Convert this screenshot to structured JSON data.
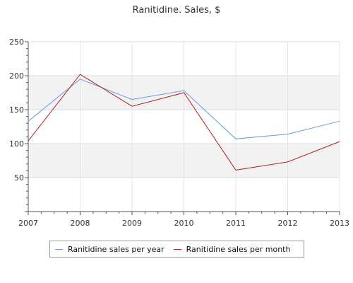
{
  "chart_data": {
    "type": "line",
    "title": "Ranitidine. Sales, $",
    "xlabel": "",
    "ylabel": "",
    "x": [
      "2007",
      "2008",
      "2009",
      "2010",
      "2011",
      "2012",
      "2013"
    ],
    "ylim": [
      0,
      250
    ],
    "yticks": [
      50,
      100,
      150,
      200,
      250
    ],
    "grid": true,
    "legend_position": "bottom",
    "series": [
      {
        "name": "Ranitidine sales per year",
        "color": "#6b9ae0",
        "values": [
          133,
          195,
          165,
          178,
          107,
          114,
          133
        ]
      },
      {
        "name": "Ranitidine sales per month",
        "color": "#b22222",
        "values": [
          104,
          202,
          155,
          175,
          61,
          73,
          103
        ]
      }
    ]
  }
}
